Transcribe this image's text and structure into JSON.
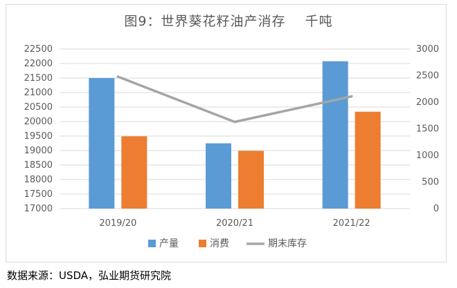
{
  "chart_data": {
    "type": "bar",
    "title": "图9：世界葵花籽油产消存    千吨",
    "categories": [
      "2019/20",
      "2020/21",
      "2021/22"
    ],
    "series": [
      {
        "name": "产量",
        "type": "bar",
        "axis": "left",
        "color": "#5b9bd5",
        "values": [
          21500,
          19250,
          22080
        ]
      },
      {
        "name": "消费",
        "type": "bar",
        "axis": "left",
        "color": "#ed7d31",
        "values": [
          19490,
          18990,
          20340
        ]
      },
      {
        "name": "期末库存",
        "type": "line",
        "axis": "right",
        "color": "#a5a5a5",
        "values": [
          2480,
          1630,
          2110
        ]
      }
    ],
    "y_left": {
      "min": 17000,
      "max": 22500,
      "ticks": [
        "17000",
        "17500",
        "18000",
        "18500",
        "19000",
        "19500",
        "20000",
        "20500",
        "21000",
        "21500",
        "22000",
        "22500"
      ]
    },
    "y_right": {
      "min": 0,
      "max": 3000,
      "ticks": [
        "0",
        "500",
        "1000",
        "1500",
        "2000",
        "2500",
        "3000"
      ]
    },
    "grid": true,
    "legend_position": "bottom"
  },
  "source": "数据来源：USDA，弘业期货研究院"
}
